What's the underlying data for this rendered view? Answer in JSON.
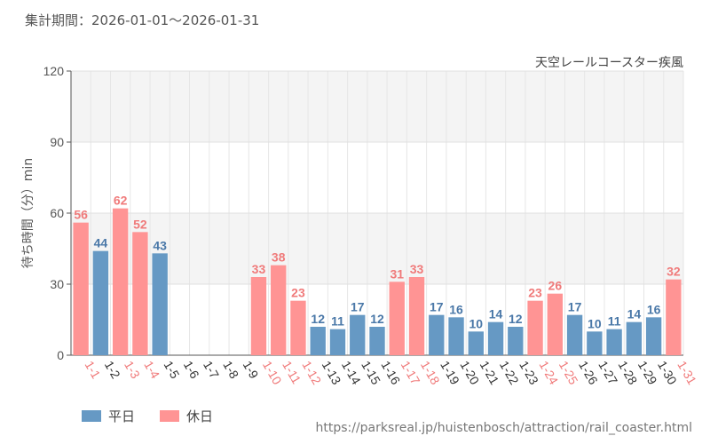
{
  "header": {
    "period": "集計期間：2026-01-01〜2026-01-31"
  },
  "chart_data": {
    "type": "bar",
    "title": "天空レールコースター疾風",
    "ylabel": "待ち時間（分）min",
    "xlabel": "",
    "ylim": [
      0,
      120
    ],
    "yticks": [
      0,
      30,
      60,
      90,
      120
    ],
    "categories": [
      "1-1",
      "1-2",
      "1-3",
      "1-4",
      "1-5",
      "1-6",
      "1-7",
      "1-8",
      "1-9",
      "1-10",
      "1-11",
      "1-12",
      "1-13",
      "1-14",
      "1-15",
      "1-16",
      "1-17",
      "1-18",
      "1-19",
      "1-20",
      "1-21",
      "1-22",
      "1-23",
      "1-24",
      "1-25",
      "1-26",
      "1-27",
      "1-28",
      "1-29",
      "1-30",
      "1-31"
    ],
    "values": [
      56,
      44,
      62,
      52,
      43,
      null,
      null,
      null,
      null,
      33,
      38,
      23,
      12,
      11,
      17,
      12,
      31,
      33,
      17,
      16,
      10,
      14,
      12,
      23,
      26,
      17,
      10,
      11,
      14,
      16,
      32
    ],
    "day_type": [
      "holiday",
      "weekday",
      "holiday",
      "holiday",
      "weekday",
      "weekday",
      "weekday",
      "weekday",
      "weekday",
      "holiday",
      "holiday",
      "holiday",
      "weekday",
      "weekday",
      "weekday",
      "weekday",
      "holiday",
      "holiday",
      "weekday",
      "weekday",
      "weekday",
      "weekday",
      "weekday",
      "holiday",
      "holiday",
      "weekday",
      "weekday",
      "weekday",
      "weekday",
      "weekday",
      "holiday"
    ],
    "legend": [
      {
        "key": "weekday",
        "label": "平日"
      },
      {
        "key": "holiday",
        "label": "休日"
      }
    ],
    "colors": {
      "weekday": "#6699c4",
      "weekday_label": "#4a78a8",
      "holiday": "#ff9494",
      "holiday_label": "#f07a7a",
      "weekday_tick": "#333333",
      "holiday_tick": "#f07a7a"
    }
  },
  "footer": {
    "source": "https://parksreal.jp/huistenbosch/attraction/rail_coaster.html"
  }
}
